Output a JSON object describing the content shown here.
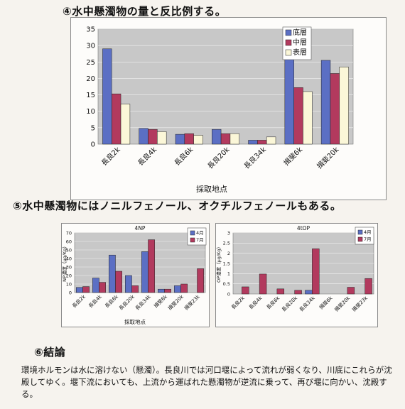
{
  "section4": {
    "heading": "④水中懸濁物の量と反比例する。"
  },
  "section5": {
    "heading": "⑤水中懸濁物にはノニルフェノール、オクチルフェノールもある。"
  },
  "section6": {
    "heading": "⑥結論",
    "body": "環境ホルモンは水に溶けない（懸濁）。長良川では河口堰によって流れが弱くなり、川底にこれらが沈殿してゆく。堰下流においても、上流から運ばれた懸濁物が逆流に乗って、再び堰に向かい、沈殿する。"
  },
  "colors": {
    "blue": "#5b6fc4",
    "red": "#b23a5e",
    "cream": "#fbf7d8",
    "plot": "#c8c8c8"
  },
  "chart_data": [
    {
      "type": "bar",
      "title": "",
      "xlabel": "採取地点",
      "ylabel": "",
      "ylim": [
        0,
        35
      ],
      "yticks": [
        0,
        5,
        10,
        15,
        20,
        25,
        30,
        35
      ],
      "grid": true,
      "legend_position": "top-right",
      "categories": [
        "長良2k",
        "長良4k",
        "長良6k",
        "長良20k",
        "長良34k",
        "揖斐6k",
        "揖斐20k"
      ],
      "series": [
        {
          "name": "底層",
          "color": "#5b6fc4",
          "values": [
            29,
            4.8,
            3,
            4.5,
            1.2,
            31,
            25.5
          ]
        },
        {
          "name": "中層",
          "color": "#b23a5e",
          "values": [
            15.3,
            4.5,
            3.2,
            3.2,
            1.2,
            17.2,
            21.5
          ]
        },
        {
          "name": "表層",
          "color": "#fbf7d8",
          "values": [
            12.2,
            3.8,
            2.7,
            3.2,
            2.2,
            16,
            23.5
          ]
        }
      ]
    },
    {
      "type": "bar",
      "title": "4NP",
      "xlabel": "採取地点",
      "ylabel": "NP濃度（μg/Kg）",
      "ylim": [
        0,
        70
      ],
      "yticks": [
        0,
        10,
        20,
        30,
        40,
        50,
        60,
        70
      ],
      "grid": true,
      "legend_position": "top-right",
      "categories": [
        "長良2k",
        "長良4k",
        "長良6k",
        "長良20k",
        "長良34k",
        "揖斐6k",
        "揖斐20k",
        "揖斐23k"
      ],
      "series": [
        {
          "name": "4月",
          "color": "#5b6fc4",
          "values": [
            6,
            17,
            44,
            20,
            48,
            4,
            8,
            0
          ]
        },
        {
          "name": "7月",
          "color": "#b23a5e",
          "values": [
            7,
            12,
            25,
            8,
            62,
            4,
            10,
            28
          ]
        }
      ]
    },
    {
      "type": "bar",
      "title": "4tOP",
      "xlabel": "",
      "ylabel": "OP濃度（μg/Kg）",
      "ylim": [
        0,
        3
      ],
      "yticks": [
        0,
        0.5,
        1,
        1.5,
        2,
        2.5,
        3
      ],
      "grid": true,
      "legend_position": "top-right",
      "categories": [
        "長良2k",
        "長良4k",
        "長良6k",
        "長良20k",
        "長良34k",
        "揖斐6k",
        "揖斐20k",
        "揖斐23k"
      ],
      "series": [
        {
          "name": "4月",
          "color": "#5b6fc4",
          "values": [
            0,
            0,
            0,
            0,
            0.18,
            0,
            0,
            0
          ]
        },
        {
          "name": "7月",
          "color": "#b23a5e",
          "values": [
            0.35,
            0.98,
            0.25,
            0.18,
            2.22,
            0,
            0.33,
            0.76
          ]
        }
      ]
    }
  ]
}
